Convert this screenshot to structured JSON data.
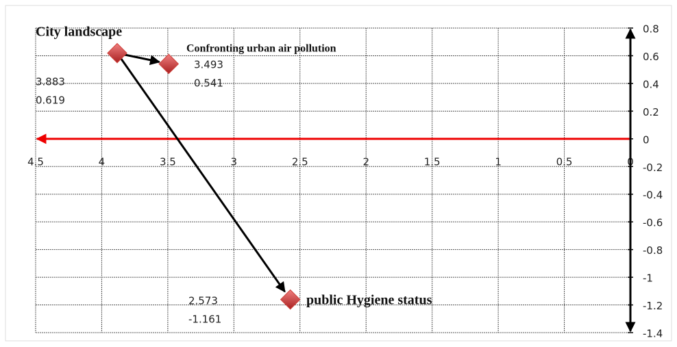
{
  "chart_data": {
    "type": "scatter",
    "labels": [
      "City landscape",
      "Confronting urban air pollution",
      "public Hygiene status"
    ],
    "x": [
      3.883,
      3.493,
      2.573
    ],
    "y": [
      0.619,
      0.541,
      -1.161
    ],
    "color": "#d0403a",
    "xlim": [
      4.5,
      0
    ],
    "xticks": [
      4.5,
      4,
      3.5,
      3,
      2.5,
      2,
      1.5,
      1,
      0.5,
      0
    ],
    "ylim": [
      -1.4,
      0.8
    ],
    "yticks": [
      0.8,
      0.6,
      0.4,
      0.2,
      0,
      -0.2,
      -0.4,
      -0.6,
      -0.8,
      -1,
      -1.2,
      -1.4
    ],
    "grid": true
  }
}
